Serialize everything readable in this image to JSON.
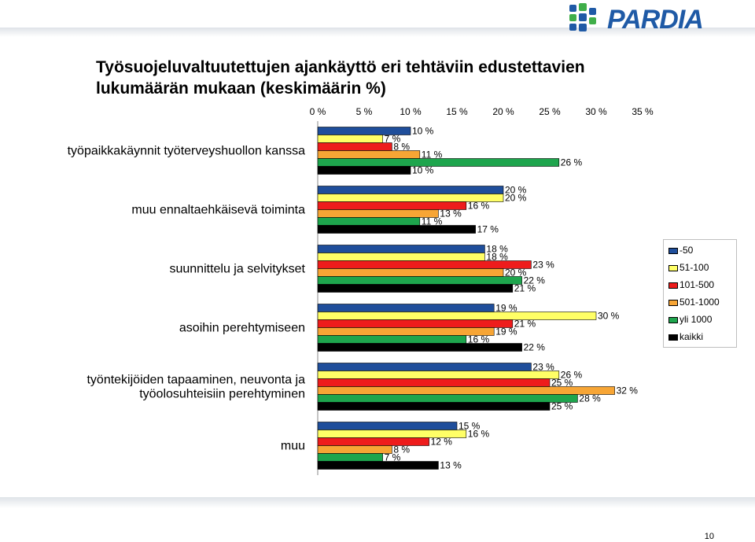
{
  "logo": {
    "text": "PARDIA"
  },
  "title": {
    "line1": "Työsuojeluvaltuutettujen ajankäyttö eri tehtäviin edustettavien",
    "line2": "lukumäärän mukaan (keskimäärin %)"
  },
  "page_number": "10",
  "colors": {
    "-50": "#1f4e9b",
    "51-100": "#ffff66",
    "101-500": "#ee1c1c",
    "501-1000": "#f7a535",
    "yli 1000": "#1ea54d",
    "kaikki": "#000000"
  },
  "chart_data": {
    "type": "bar",
    "orientation": "horizontal",
    "xlim": [
      0,
      35
    ],
    "x_ticks": [
      "0 %",
      "5 %",
      "10 %",
      "15 %",
      "20 %",
      "25 %",
      "30 %",
      "35 %"
    ],
    "categories": [
      [
        "työpaikkakäynnit työterveyshuollon kanssa"
      ],
      [
        "muu ennaltaehkäisevä toiminta"
      ],
      [
        "suunnittelu ja selvitykset"
      ],
      [
        "asoihin perehtymiseen"
      ],
      [
        "työntekijöiden tapaaminen, neuvonta ja",
        "työolosuhteisiin perehtyminen"
      ],
      [
        "muu"
      ]
    ],
    "series": [
      {
        "name": "-50",
        "values": [
          10,
          20,
          18,
          19,
          23,
          15
        ]
      },
      {
        "name": "51-100",
        "values": [
          7,
          20,
          18,
          30,
          26,
          16
        ]
      },
      {
        "name": "101-500",
        "values": [
          8,
          16,
          23,
          21,
          25,
          12
        ]
      },
      {
        "name": "501-1000",
        "values": [
          11,
          13,
          20,
          19,
          32,
          8
        ]
      },
      {
        "name": "yli 1000",
        "values": [
          26,
          11,
          22,
          16,
          28,
          7
        ]
      },
      {
        "name": "kaikki",
        "values": [
          10,
          17,
          21,
          22,
          25,
          13
        ]
      }
    ],
    "legend_position": "right"
  }
}
